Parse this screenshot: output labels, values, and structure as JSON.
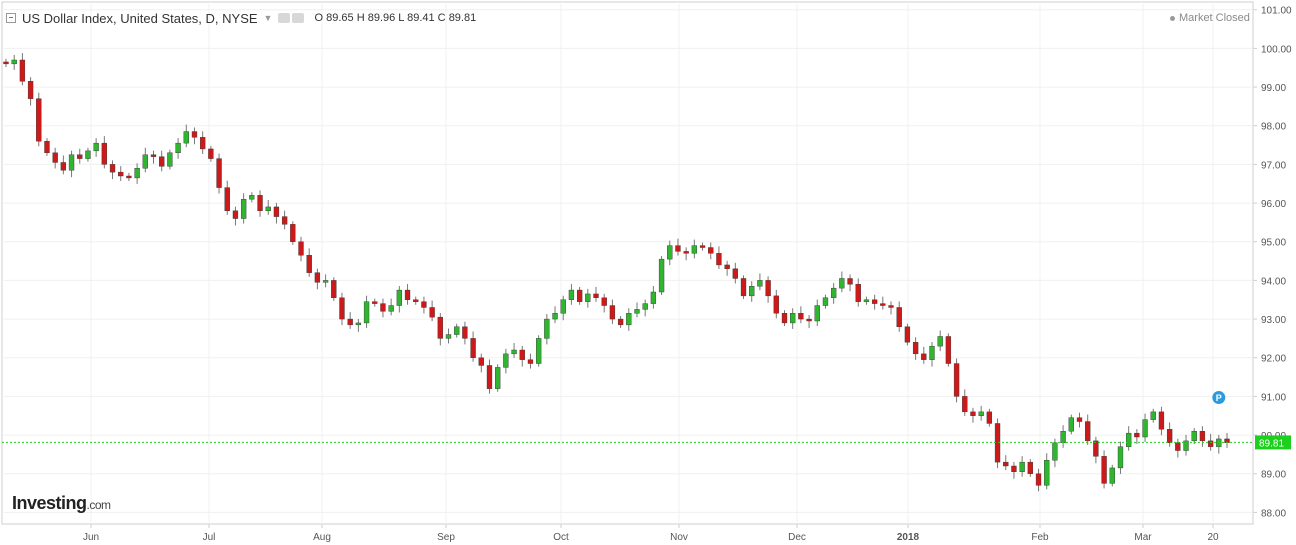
{
  "header": {
    "title": "US Dollar Index, United States, D, NYSE",
    "ohlc": {
      "o_label": "O",
      "o": "89.65",
      "h_label": "H",
      "h": "89.96",
      "l_label": "L",
      "l": "89.41",
      "c_label": "C",
      "c": "89.81"
    }
  },
  "status": "Market Closed",
  "branding": {
    "name": "Investing",
    "suffix": ".com"
  },
  "price_marker": {
    "label": "P"
  },
  "chart_data": {
    "type": "candlestick",
    "ylim": [
      87.7,
      101.2
    ],
    "yticks": [
      "88.00",
      "89.00",
      "90.00",
      "91.00",
      "92.00",
      "93.00",
      "94.00",
      "95.00",
      "96.00",
      "97.00",
      "98.00",
      "99.00",
      "100.00",
      "101.00"
    ],
    "xticks": [
      "Jun",
      "Jul",
      "Aug",
      "Sep",
      "Oct",
      "Nov",
      "Dec",
      "2018",
      "Feb",
      "Mar",
      "20"
    ],
    "last_price": "89.81",
    "colors": {
      "up": "#2fb52f",
      "down": "#cc1a1a",
      "last": "#1ed01e"
    },
    "closes": [
      99.6,
      99.7,
      99.15,
      98.7,
      97.6,
      97.3,
      97.05,
      96.85,
      97.25,
      97.15,
      97.35,
      97.55,
      97.0,
      96.8,
      96.7,
      96.65,
      96.9,
      97.25,
      97.2,
      96.95,
      97.3,
      97.55,
      97.85,
      97.7,
      97.4,
      97.15,
      96.4,
      95.8,
      95.6,
      96.1,
      96.2,
      95.8,
      95.9,
      95.65,
      95.45,
      95.0,
      94.65,
      94.2,
      93.95,
      94.0,
      93.55,
      93.0,
      92.85,
      92.9,
      93.45,
      93.4,
      93.2,
      93.35,
      93.75,
      93.5,
      93.45,
      93.3,
      93.05,
      92.5,
      92.6,
      92.8,
      92.5,
      92.0,
      91.8,
      91.2,
      91.75,
      92.1,
      92.2,
      91.95,
      91.85,
      92.5,
      93.0,
      93.15,
      93.5,
      93.75,
      93.45,
      93.65,
      93.55,
      93.35,
      93.0,
      92.85,
      93.15,
      93.25,
      93.4,
      93.7,
      94.55,
      94.9,
      94.75,
      94.7,
      94.9,
      94.85,
      94.7,
      94.4,
      94.3,
      94.05,
      93.6,
      93.85,
      94.0,
      93.6,
      93.15,
      92.9,
      93.15,
      93.0,
      92.95,
      93.35,
      93.55,
      93.8,
      94.05,
      93.9,
      93.45,
      93.5,
      93.4,
      93.35,
      93.3,
      92.8,
      92.4,
      92.1,
      91.95,
      92.3,
      92.55,
      91.85,
      91.0,
      90.6,
      90.5,
      90.6,
      90.3,
      89.3,
      89.2,
      89.05,
      89.3,
      89.0,
      88.7,
      89.35,
      89.8,
      90.1,
      90.45,
      90.35,
      89.85,
      89.45,
      88.75,
      89.15,
      89.7,
      90.05,
      89.95,
      90.4,
      90.6,
      90.15,
      89.8,
      89.6,
      89.85,
      90.1,
      89.85,
      89.7,
      89.9,
      89.8
    ]
  }
}
